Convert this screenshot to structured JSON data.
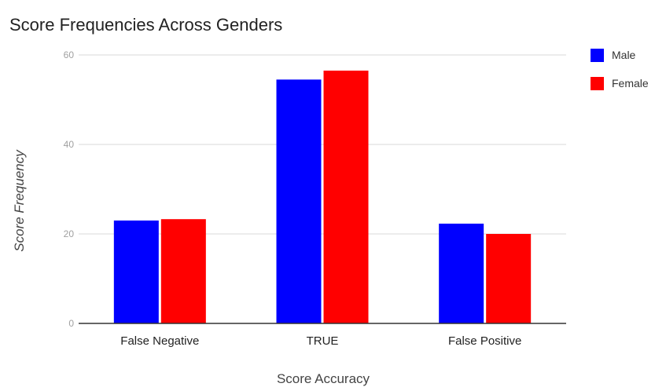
{
  "chart_data": {
    "type": "bar",
    "title": "Score Frequencies Across Genders",
    "xlabel": "Score Accuracy",
    "ylabel": "Score Frequency",
    "categories": [
      "False Negative",
      "TRUE",
      "False Positive"
    ],
    "series": [
      {
        "name": "Male",
        "color": "#0000ff",
        "values": [
          23,
          54.5,
          22.3
        ]
      },
      {
        "name": "Female",
        "color": "#ff0000",
        "values": [
          23.3,
          56.5,
          20
        ]
      }
    ],
    "ylim": [
      0,
      60
    ],
    "yticks": [
      0,
      20,
      40,
      60
    ],
    "grid": true,
    "legend_position": "top-right"
  }
}
